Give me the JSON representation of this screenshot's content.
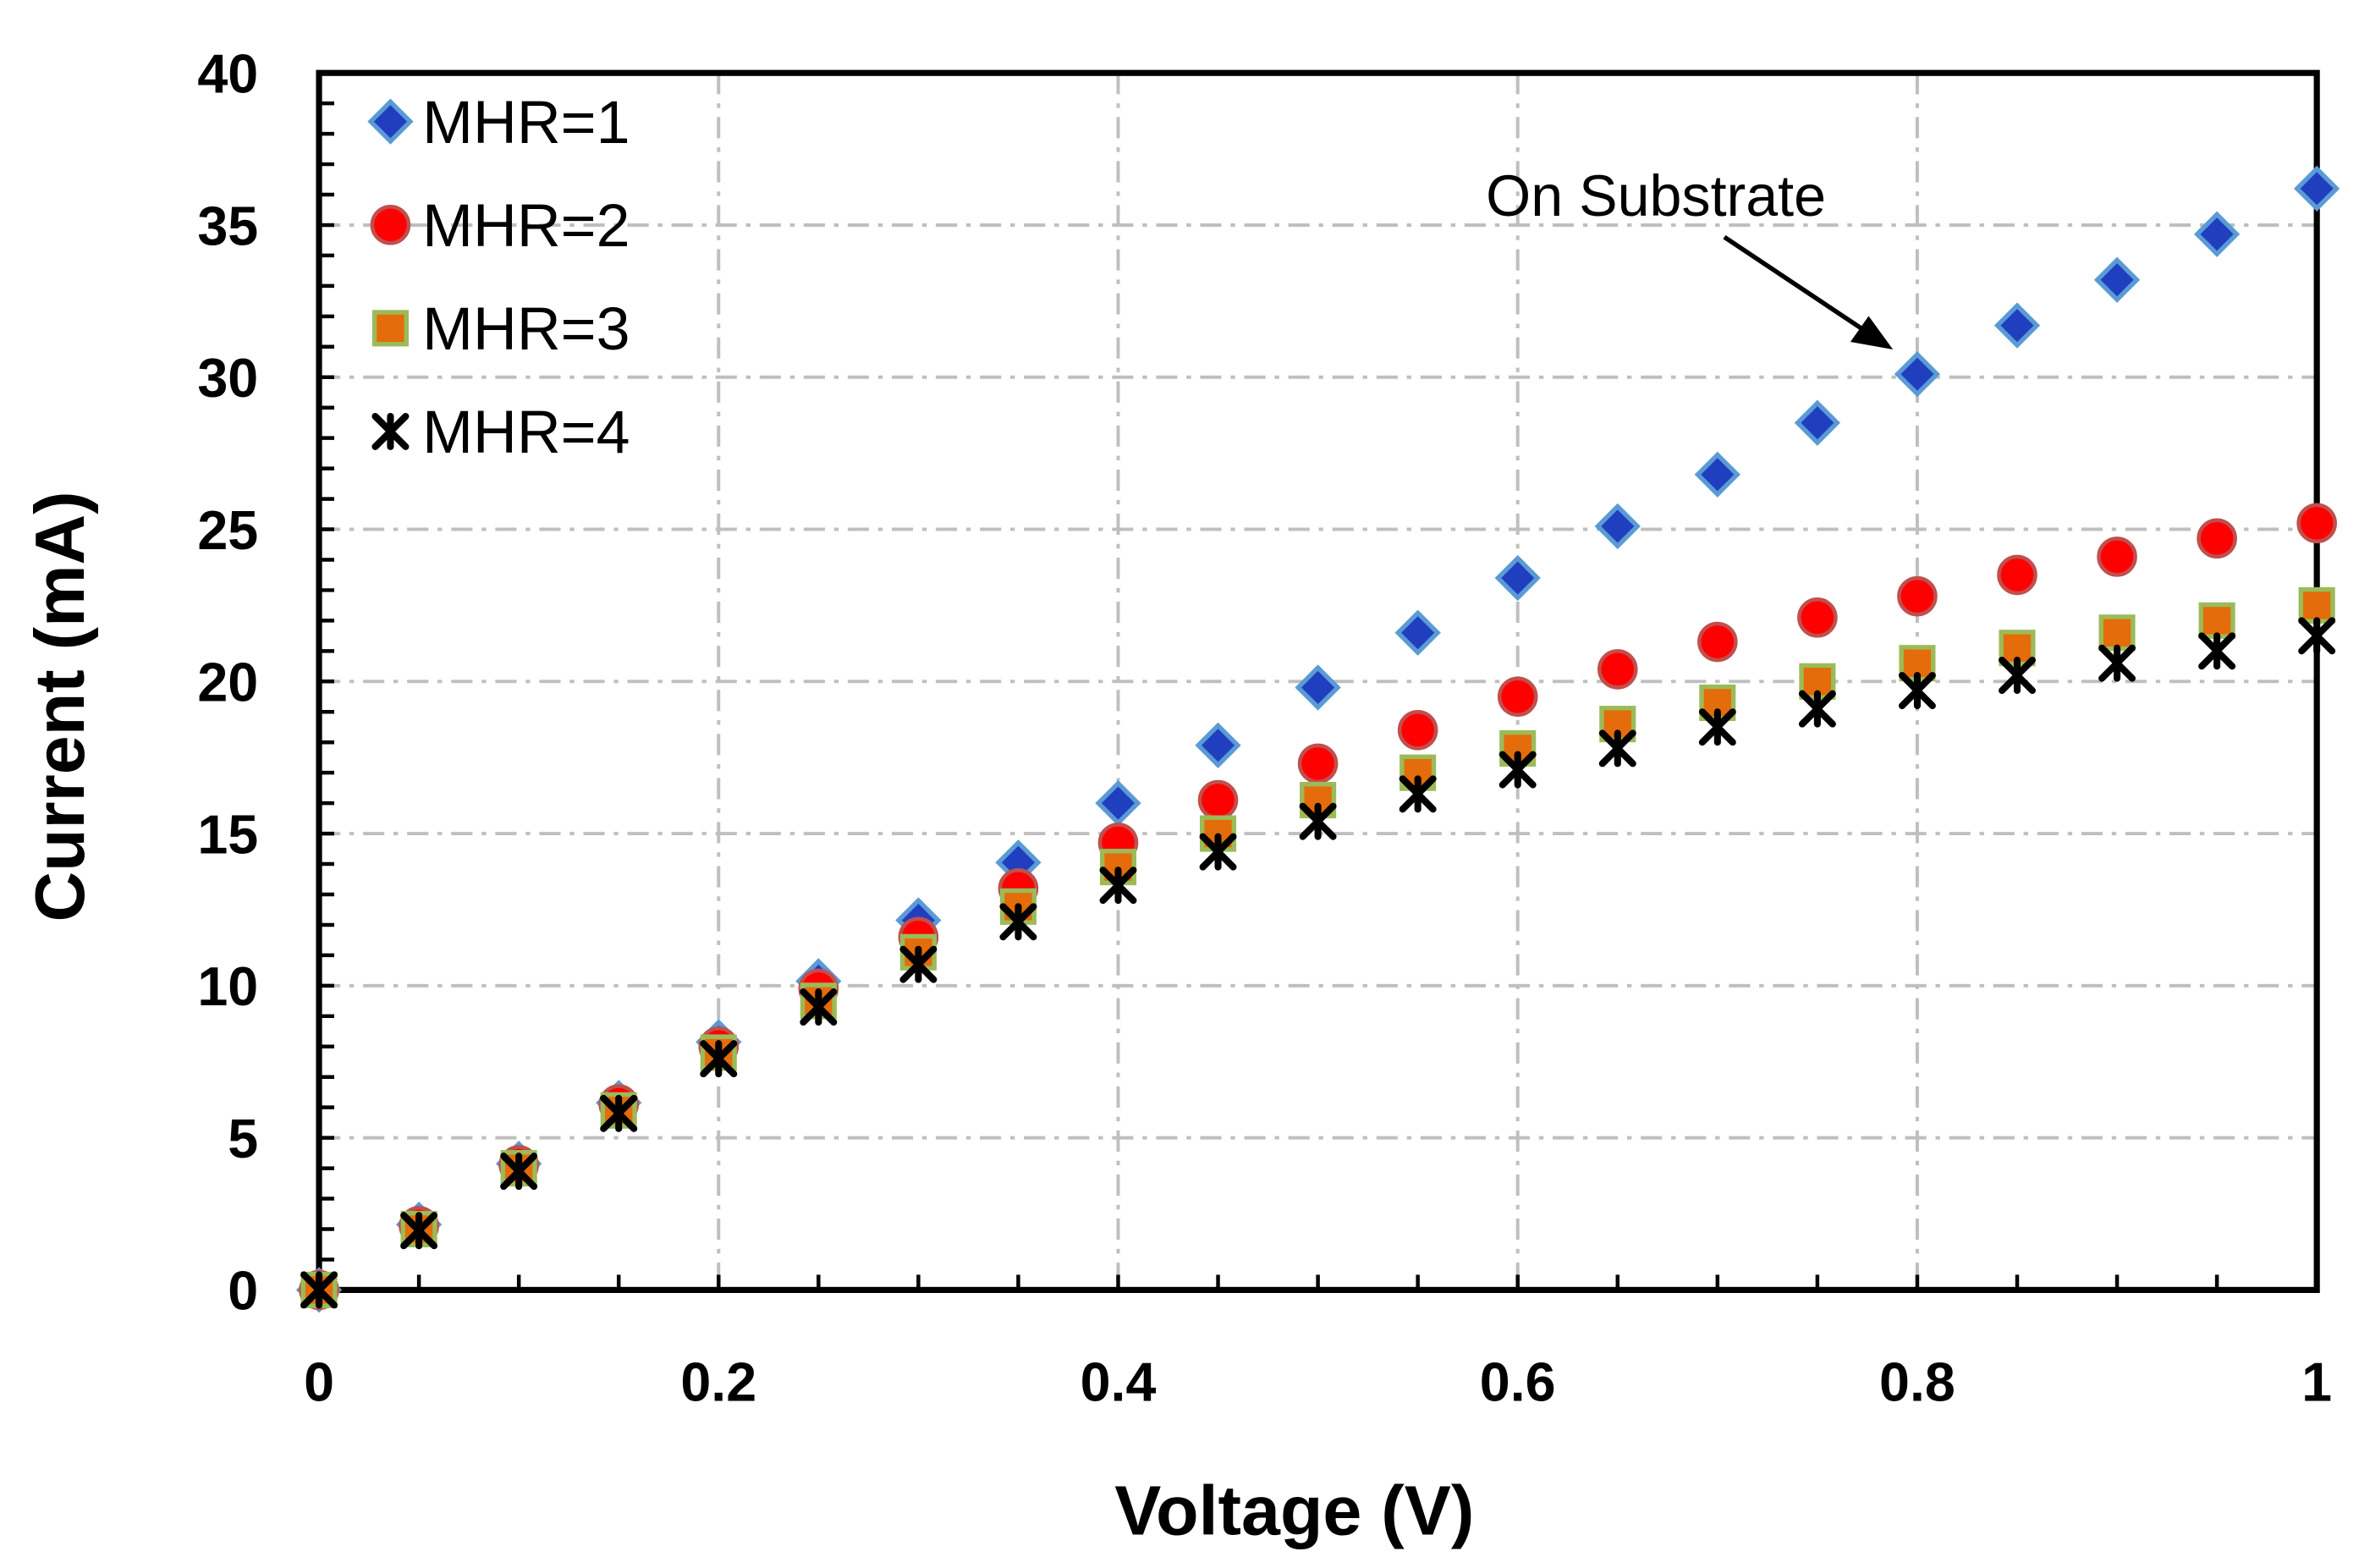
{
  "chart_data": {
    "type": "scatter",
    "title": "",
    "xlabel": "Voltage (V)",
    "ylabel": "Current (mA)",
    "xlim": [
      0,
      1
    ],
    "ylim": [
      0,
      40
    ],
    "xticks": [
      "0",
      "0.2",
      "0.4",
      "0.6",
      "0.8",
      "1"
    ],
    "xtick_values": [
      0,
      0.2,
      0.4,
      0.6,
      0.8,
      1
    ],
    "yticks": [
      "0",
      "5",
      "10",
      "15",
      "20",
      "25",
      "30",
      "35",
      "40"
    ],
    "ytick_values": [
      0,
      5,
      10,
      15,
      20,
      25,
      30,
      35,
      40
    ],
    "grid": true,
    "legend_position": "top-left",
    "x": [
      0,
      0.05,
      0.1,
      0.15,
      0.2,
      0.25,
      0.3,
      0.35,
      0.4,
      0.45,
      0.5,
      0.55,
      0.6,
      0.65,
      0.7,
      0.75,
      0.8,
      0.85,
      0.9,
      0.95,
      1.0
    ],
    "series": [
      {
        "name": "MHR=1",
        "marker": "diamond",
        "color": "#1f3fbf",
        "edge": "#5b9bd5",
        "values": [
          0,
          2.15,
          4.15,
          6.15,
          8.15,
          10.15,
          12.15,
          14.05,
          16.0,
          17.9,
          19.8,
          21.6,
          23.4,
          25.1,
          26.8,
          28.5,
          30.1,
          31.7,
          33.2,
          34.7,
          36.2
        ]
      },
      {
        "name": "MHR=2",
        "marker": "circle",
        "color": "#ff0000",
        "edge": "#c0504d",
        "values": [
          0,
          2.1,
          4.1,
          6.1,
          8.0,
          9.9,
          11.6,
          13.2,
          14.7,
          16.1,
          17.3,
          18.4,
          19.5,
          20.4,
          21.3,
          22.1,
          22.8,
          23.5,
          24.1,
          24.7,
          25.2
        ]
      },
      {
        "name": "MHR=3",
        "marker": "square",
        "color": "#e46c0a",
        "edge": "#9bbb59",
        "values": [
          0,
          2.0,
          4.0,
          5.9,
          7.8,
          9.5,
          11.1,
          12.6,
          13.9,
          15.0,
          16.1,
          17.0,
          17.8,
          18.6,
          19.3,
          20.0,
          20.6,
          21.1,
          21.6,
          22.0,
          22.5
        ]
      },
      {
        "name": "MHR=4",
        "marker": "x-star",
        "color": "#000000",
        "edge": "#000000",
        "values": [
          0,
          1.95,
          3.9,
          5.8,
          7.6,
          9.3,
          10.7,
          12.1,
          13.3,
          14.4,
          15.4,
          16.3,
          17.1,
          17.8,
          18.5,
          19.1,
          19.7,
          20.2,
          20.6,
          21.0,
          21.5
        ]
      }
    ],
    "annotations": [
      {
        "text": "On Substrate",
        "points_to": {
          "series": "MHR=1",
          "x": 0.8,
          "y": 30.1
        }
      }
    ]
  }
}
